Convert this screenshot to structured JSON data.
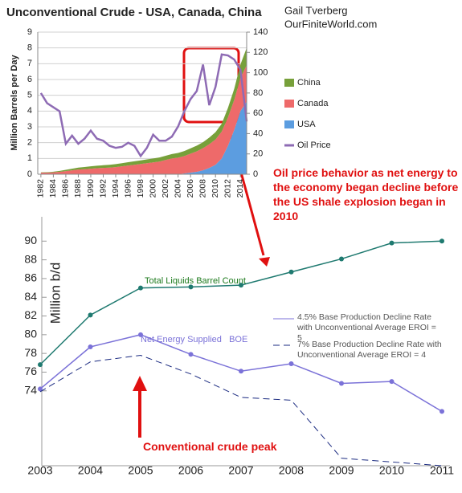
{
  "chart_data": [
    {
      "type": "stacked-area",
      "title": "Unconventional Crude - USA, Canada, China",
      "subtitle": [
        "Gail Tverberg",
        "OurFiniteWorld.com"
      ],
      "y_label": "Million Barrels per Day",
      "x": [
        1982,
        1983,
        1984,
        1985,
        1986,
        1987,
        1988,
        1989,
        1990,
        1991,
        1992,
        1993,
        1994,
        1995,
        1996,
        1997,
        1998,
        1999,
        2000,
        2001,
        2002,
        2003,
        2004,
        2005,
        2006,
        2007,
        2008,
        2009,
        2010,
        2011,
        2012,
        2013,
        2014,
        2015
      ],
      "xlim": [
        1981.5,
        2015
      ],
      "xticks": [
        1982,
        1984,
        1986,
        1988,
        1990,
        1992,
        1994,
        1996,
        1998,
        2000,
        2002,
        2004,
        2006,
        2008,
        2010,
        2012,
        2014
      ],
      "ylim": [
        0,
        9
      ],
      "yticks": [
        0,
        1,
        2,
        3,
        4,
        5,
        6,
        7,
        8,
        9
      ],
      "y2lim": [
        0,
        140
      ],
      "y2ticks": [
        0,
        20,
        40,
        60,
        80,
        100,
        120,
        140
      ],
      "series": [
        {
          "name": "USA",
          "color": "#5c9de0",
          "values": [
            0,
            0,
            0,
            0,
            0,
            0,
            0,
            0,
            0,
            0,
            0,
            0,
            0,
            0,
            0,
            0,
            0,
            0,
            0,
            0,
            0,
            0,
            0,
            0.05,
            0.1,
            0.15,
            0.25,
            0.4,
            0.6,
            1.0,
            1.8,
            2.8,
            4.0,
            4.6
          ]
        },
        {
          "name": "Canada",
          "color": "#ee6a6a",
          "values": [
            0.1,
            0.1,
            0.12,
            0.15,
            0.2,
            0.25,
            0.3,
            0.32,
            0.35,
            0.38,
            0.4,
            0.42,
            0.45,
            0.5,
            0.55,
            0.6,
            0.65,
            0.7,
            0.75,
            0.8,
            0.9,
            1.0,
            1.05,
            1.1,
            1.2,
            1.3,
            1.4,
            1.5,
            1.6,
            1.7,
            1.8,
            1.9,
            2.1,
            2.3
          ]
        },
        {
          "name": "China",
          "color": "#77a03a",
          "values": [
            0.02,
            0.03,
            0.04,
            0.06,
            0.08,
            0.1,
            0.12,
            0.14,
            0.15,
            0.16,
            0.17,
            0.18,
            0.19,
            0.2,
            0.21,
            0.22,
            0.23,
            0.24,
            0.25,
            0.26,
            0.27,
            0.28,
            0.3,
            0.32,
            0.34,
            0.36,
            0.38,
            0.42,
            0.46,
            0.5,
            0.6,
            0.7,
            0.85,
            1.1
          ]
        },
        {
          "name": "Oil Price",
          "color": "#8e6bb4",
          "axis": "y2",
          "values": [
            80,
            70,
            66,
            62,
            30,
            38,
            30,
            35,
            43,
            35,
            33,
            28,
            26,
            27,
            31,
            28,
            18,
            26,
            39,
            33,
            33,
            37,
            47,
            62,
            74,
            82,
            108,
            68,
            86,
            118,
            117,
            113,
            103,
            52
          ]
        }
      ],
      "legend": [
        "China",
        "Canada",
        "USA",
        "Oil Price"
      ]
    },
    {
      "type": "line",
      "y_label": "Million b/d",
      "categories": [
        "2003",
        "2004",
        "2005",
        "2006",
        "2007",
        "2008",
        "2009",
        "2010",
        "2011"
      ],
      "ylim": [
        66,
        92.6
      ],
      "yticks": [
        74,
        76,
        78,
        80,
        82,
        84,
        86,
        88,
        90
      ],
      "series": [
        {
          "name": "Total Liquids Barrel Count",
          "color": "#1f7a70",
          "values": [
            76.8,
            82.1,
            85.0,
            85.1,
            85.3,
            86.7,
            88.1,
            89.8,
            90.0
          ]
        },
        {
          "name": "4.5% Base Production Decline Rate with Unconventional Average EROI = 5",
          "color": "#7b72d8",
          "values": [
            74.2,
            78.7,
            80.0,
            77.9,
            76.1,
            76.9,
            74.8,
            75.0,
            71.8
          ]
        },
        {
          "name": "7% Base Production Decline Rate with Unconventional Average EROI = 4",
          "color": "#1a2a80",
          "dashed": true,
          "values": [
            73.9,
            77.1,
            77.8,
            75.8,
            73.3,
            73.0,
            66.8,
            66.4,
            66.0
          ]
        }
      ],
      "annotations": [
        "Net Energy Supplied   BOE",
        "Conventional crude peak",
        "Oil price behavior as net energy to the economy began decline before the US shale explosion began in 2010"
      ]
    }
  ]
}
